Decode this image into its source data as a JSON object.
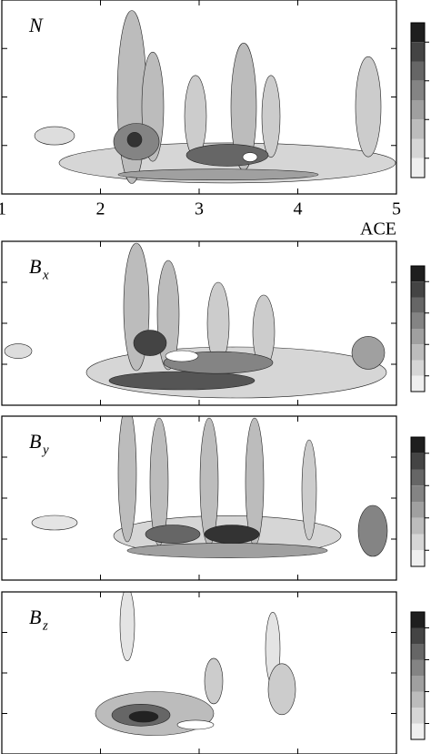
{
  "chart_data": [
    {
      "type": "contour",
      "title": "N",
      "annotation": "ACE",
      "xlim": [
        1,
        5
      ],
      "xticks": [
        1,
        2,
        3,
        4,
        5
      ],
      "tick_labels": true
    },
    {
      "type": "contour",
      "title": "B",
      "title_subscript": "x",
      "xlim": [
        1,
        5
      ],
      "xticks": [
        1,
        2,
        3,
        4,
        5
      ],
      "tick_labels": false
    },
    {
      "type": "contour",
      "title": "B",
      "title_subscript": "y",
      "xlim": [
        1,
        5
      ],
      "xticks": [
        1,
        2,
        3,
        4,
        5
      ],
      "tick_labels": false
    },
    {
      "type": "contour",
      "title": "B",
      "title_subscript": "z",
      "xlim": [
        1,
        5
      ],
      "xticks": [
        1,
        2,
        3,
        4,
        5
      ],
      "tick_labels": false
    }
  ]
}
